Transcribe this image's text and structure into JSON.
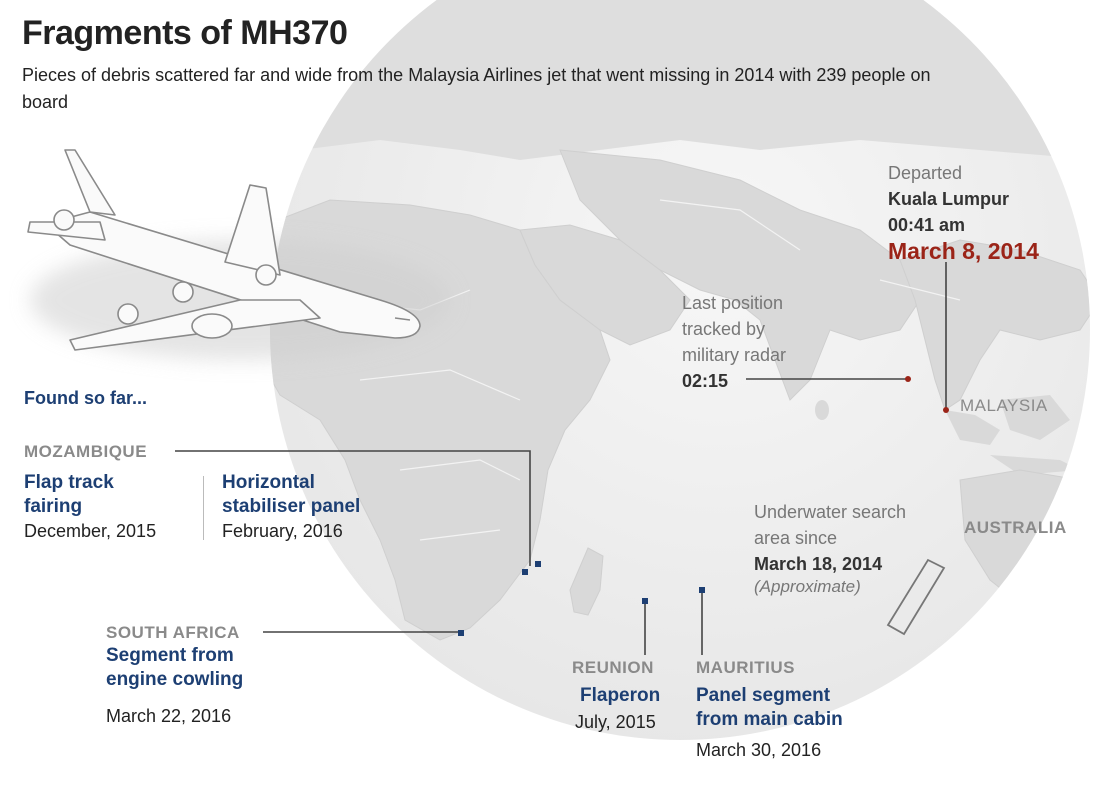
{
  "header": {
    "title": "Fragments of MH370",
    "subtitle": "Pieces of debris scattered far and wide from the Malaysia Airlines jet that went missing in 2014 with 239 people on board"
  },
  "found_heading": "Found so far...",
  "mozambique": {
    "place": "MOZAMBIQUE",
    "items": [
      {
        "name": "Flap track fairing",
        "date": "December, 2015"
      },
      {
        "name": "Horizontal stabiliser panel",
        "date": "February, 2016"
      }
    ]
  },
  "south_africa": {
    "place": "SOUTH AFRICA",
    "name": "Segment from engine cowling",
    "date": "March 22, 2016"
  },
  "reunion": {
    "place": "REUNION",
    "name": "Flaperon",
    "date": "July, 2015"
  },
  "mauritius": {
    "place": "MAURITIUS",
    "name": "Panel segment from main cabin",
    "date": "March 30, 2016"
  },
  "departed": {
    "label": "Departed",
    "city": "Kuala Lumpur",
    "time": "00:41 am",
    "date": "March 8, 2014"
  },
  "radar": {
    "line1": "Last position",
    "line2": "tracked by",
    "line3": "military radar",
    "time": "02:15"
  },
  "search": {
    "line1": "Underwater search",
    "line2": "area since",
    "date": "March 18, 2014",
    "note": "(Approximate)"
  },
  "places": {
    "malaysia": "MALAYSIA",
    "australia": "AUSTRALIA"
  },
  "colors": {
    "debris_blue": "#1d3f73",
    "accent_red": "#9b2418",
    "land": "#e4e4e4",
    "ocean_globe": "#f4f4f4"
  }
}
